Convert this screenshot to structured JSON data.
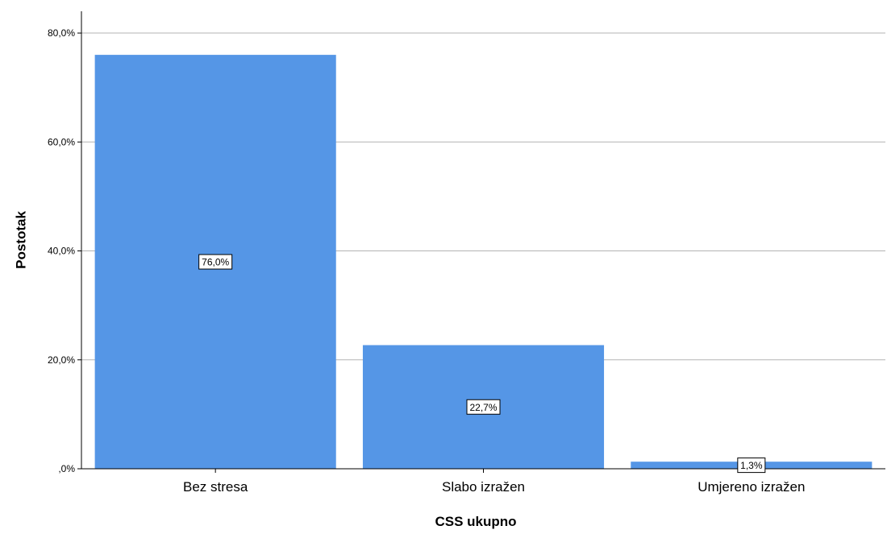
{
  "chart_data": {
    "type": "bar",
    "title": "",
    "xlabel": "CSS ukupno",
    "ylabel": "Postotak",
    "categories": [
      "Bez stresa",
      "Slabo izražen",
      "Umjereno izražen"
    ],
    "values": [
      76.0,
      22.7,
      1.3
    ],
    "data_labels": [
      "76,0%",
      "22,7%",
      "1,3%"
    ],
    "ylim": [
      0,
      84
    ],
    "yticks": [
      0,
      20,
      40,
      60,
      80
    ],
    "ytick_labels": [
      ",0%",
      "20,0%",
      "40,0%",
      "60,0%",
      "80,0%"
    ],
    "grid": true,
    "legend": "none",
    "colors": {
      "bar": "#5596e6",
      "grid": "#b3b3b3",
      "axis": "#000000"
    }
  }
}
